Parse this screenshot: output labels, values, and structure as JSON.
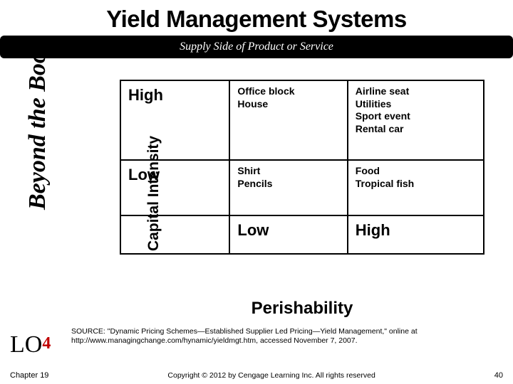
{
  "title": "Yield Management Systems",
  "subtitle": "Supply Side of Product or Service",
  "beyond_label": "Beyond the Book",
  "axis_y": "Capital Intensity",
  "axis_x": "Perishability",
  "matrix": {
    "row_labels": {
      "high": "High",
      "low": "Low"
    },
    "col_labels": {
      "low": "Low",
      "high": "High"
    },
    "cells": {
      "high_low": "Office block\nHouse",
      "high_high": "Airline seat\nUtilities\nSport event\nRental car",
      "low_low": "Shirt\nPencils",
      "low_high": "Food\nTropical fish"
    }
  },
  "lo": {
    "prefix": "LO",
    "num": "4"
  },
  "source": "SOURCE: \"Dynamic Pricing Schemes—Established Supplier Led Pricing—Yield Management,\" online at http://www.managingchange.com/hynamic/yieldmgt.htm, accessed November 7, 2007.",
  "footer": {
    "chapter": "Chapter 19",
    "copyright": "Copyright © 2012 by Cengage Learning Inc. All rights reserved",
    "page": "40"
  }
}
